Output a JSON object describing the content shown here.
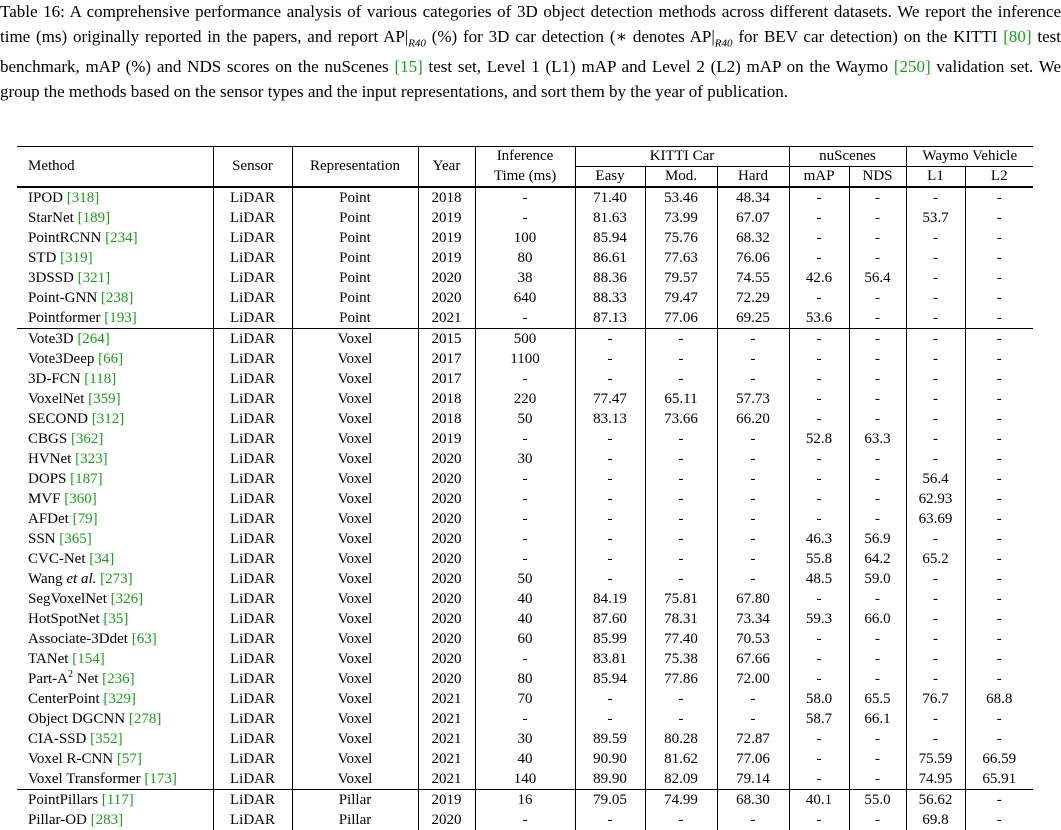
{
  "caption": {
    "label": "Table 16:",
    "p1": " A comprehensive performance analysis of various categories of 3D object detection methods across different datasets. We report the inference time (ms) originally reported in the papers, and report AP|",
    "ap_sub": "R40",
    "p2": " (%) for 3D car detection (",
    "star": "∗",
    "p3": " denotes AP|",
    "p4": " for BEV car detection) on the KITTI ",
    "cite_kitti": "[80]",
    "p5": " test benchmark, mAP (%) and NDS scores on the nuScenes ",
    "cite_nuscenes": "[15]",
    "p6": " test set, Level 1 (L1) mAP and Level 2 (L2) mAP on the Waymo ",
    "cite_waymo": "[250]",
    "p7": " validation set. We group the methods based on the sensor types and the input representations, and sort them by the year of publication."
  },
  "header": {
    "method": "Method",
    "sensor": "Sensor",
    "representation": "Representation",
    "year": "Year",
    "inference_1": "Inference",
    "inference_2": "Time (ms)",
    "kitti": "KITTI Car",
    "easy": "Easy",
    "mod": "Mod.",
    "hard": "Hard",
    "nuscenes": "nuScenes",
    "map": "mAP",
    "nds": "NDS",
    "waymo": "Waymo Vehicle",
    "l1": "L1",
    "l2": "L2"
  },
  "rows": [
    {
      "name": "IPOD",
      "cite": "[318]",
      "sensor": "LiDAR",
      "rep": "Point",
      "year": "2018",
      "time": "-",
      "easy": "71.40",
      "mod": "53.46",
      "hard": "48.34",
      "map": "-",
      "nds": "-",
      "l1": "-",
      "l2": "-"
    },
    {
      "name": "StarNet",
      "cite": "[189]",
      "sensor": "LiDAR",
      "rep": "Point",
      "year": "2019",
      "time": "-",
      "easy": "81.63",
      "mod": "73.99",
      "hard": "67.07",
      "map": "-",
      "nds": "-",
      "l1": "53.7",
      "l2": "-"
    },
    {
      "name": "PointRCNN",
      "cite": "[234]",
      "sensor": "LiDAR",
      "rep": "Point",
      "year": "2019",
      "time": "100",
      "easy": "85.94",
      "mod": "75.76",
      "hard": "68.32",
      "map": "-",
      "nds": "-",
      "l1": "-",
      "l2": "-"
    },
    {
      "name": "STD",
      "cite": "[319]",
      "sensor": "LiDAR",
      "rep": "Point",
      "year": "2019",
      "time": "80",
      "easy": "86.61",
      "mod": "77.63",
      "hard": "76.06",
      "map": "-",
      "nds": "-",
      "l1": "-",
      "l2": "-"
    },
    {
      "name": "3DSSD",
      "cite": "[321]",
      "sensor": "LiDAR",
      "rep": "Point",
      "year": "2020",
      "time": "38",
      "easy": "88.36",
      "mod": "79.57",
      "hard": "74.55",
      "map": "42.6",
      "nds": "56.4",
      "l1": "-",
      "l2": "-"
    },
    {
      "name": "Point-GNN",
      "cite": "[238]",
      "sensor": "LiDAR",
      "rep": "Point",
      "year": "2020",
      "time": "640",
      "easy": "88.33",
      "mod": "79.47",
      "hard": "72.29",
      "map": "-",
      "nds": "-",
      "l1": "-",
      "l2": "-"
    },
    {
      "name": "Pointformer",
      "cite": "[193]",
      "sensor": "LiDAR",
      "rep": "Point",
      "year": "2021",
      "time": "-",
      "easy": "87.13",
      "mod": "77.06",
      "hard": "69.25",
      "map": "53.6",
      "nds": "-",
      "l1": "-",
      "l2": "-"
    },
    {
      "name": "Vote3D",
      "cite": "[264]",
      "sensor": "LiDAR",
      "rep": "Voxel",
      "year": "2015",
      "time": "500",
      "easy": "-",
      "mod": "-",
      "hard": "-",
      "map": "-",
      "nds": "-",
      "l1": "-",
      "l2": "-"
    },
    {
      "name": "Vote3Deep",
      "cite": "[66]",
      "sensor": "LiDAR",
      "rep": "Voxel",
      "year": "2017",
      "time": "1100",
      "easy": "-",
      "mod": "-",
      "hard": "-",
      "map": "-",
      "nds": "-",
      "l1": "-",
      "l2": "-"
    },
    {
      "name": "3D-FCN",
      "cite": "[118]",
      "sensor": "LiDAR",
      "rep": "Voxel",
      "year": "2017",
      "time": "-",
      "easy": "-",
      "mod": "-",
      "hard": "-",
      "map": "-",
      "nds": "-",
      "l1": "-",
      "l2": "-"
    },
    {
      "name": "VoxelNet",
      "cite": "[359]",
      "sensor": "LiDAR",
      "rep": "Voxel",
      "year": "2018",
      "time": "220",
      "easy": "77.47",
      "mod": "65.11",
      "hard": "57.73",
      "map": "-",
      "nds": "-",
      "l1": "-",
      "l2": "-"
    },
    {
      "name": "SECOND",
      "cite": "[312]",
      "sensor": "LiDAR",
      "rep": "Voxel",
      "year": "2018",
      "time": "50",
      "easy": "83.13",
      "mod": "73.66",
      "hard": "66.20",
      "map": "-",
      "nds": "-",
      "l1": "-",
      "l2": "-"
    },
    {
      "name": "CBGS",
      "cite": "[362]",
      "sensor": "LiDAR",
      "rep": "Voxel",
      "year": "2019",
      "time": "-",
      "easy": "-",
      "mod": "-",
      "hard": "-",
      "map": "52.8",
      "nds": "63.3",
      "l1": "-",
      "l2": "-"
    },
    {
      "name": "HVNet",
      "cite": "[323]",
      "sensor": "LiDAR",
      "rep": "Voxel",
      "year": "2020",
      "time": "30",
      "easy": "-",
      "mod": "-",
      "hard": "-",
      "map": "-",
      "nds": "-",
      "l1": "-",
      "l2": "-"
    },
    {
      "name": "DOPS",
      "cite": "[187]",
      "sensor": "LiDAR",
      "rep": "Voxel",
      "year": "2020",
      "time": "-",
      "easy": "-",
      "mod": "-",
      "hard": "-",
      "map": "-",
      "nds": "-",
      "l1": "56.4",
      "l2": "-"
    },
    {
      "name": "MVF",
      "cite": "[360]",
      "sensor": "LiDAR",
      "rep": "Voxel",
      "year": "2020",
      "time": "-",
      "easy": "-",
      "mod": "-",
      "hard": "-",
      "map": "-",
      "nds": "-",
      "l1": "62.93",
      "l2": "-"
    },
    {
      "name": "AFDet",
      "cite": "[79]",
      "sensor": "LiDAR",
      "rep": "Voxel",
      "year": "2020",
      "time": "-",
      "easy": "-",
      "mod": "-",
      "hard": "-",
      "map": "-",
      "nds": "-",
      "l1": "63.69",
      "l2": "-"
    },
    {
      "name": "SSN",
      "cite": "[365]",
      "sensor": "LiDAR",
      "rep": "Voxel",
      "year": "2020",
      "time": "-",
      "easy": "-",
      "mod": "-",
      "hard": "-",
      "map": "46.3",
      "nds": "56.9",
      "l1": "-",
      "l2": "-"
    },
    {
      "name": "CVC-Net",
      "cite": "[34]",
      "sensor": "LiDAR",
      "rep": "Voxel",
      "year": "2020",
      "time": "-",
      "easy": "-",
      "mod": "-",
      "hard": "-",
      "map": "55.8",
      "nds": "64.2",
      "l1": "65.2",
      "l2": "-"
    },
    {
      "name": "Wang",
      "etal": "et al.",
      "cite": "[273]",
      "sensor": "LiDAR",
      "rep": "Voxel",
      "year": "2020",
      "time": "50",
      "easy": "-",
      "mod": "-",
      "hard": "-",
      "map": "48.5",
      "nds": "59.0",
      "l1": "-",
      "l2": "-"
    },
    {
      "name": "SegVoxelNet",
      "cite": "[326]",
      "sensor": "LiDAR",
      "rep": "Voxel",
      "year": "2020",
      "time": "40",
      "easy": "84.19",
      "mod": "75.81",
      "hard": "67.80",
      "map": "-",
      "nds": "-",
      "l1": "-",
      "l2": "-"
    },
    {
      "name": "HotSpotNet",
      "cite": "[35]",
      "sensor": "LiDAR",
      "rep": "Voxel",
      "year": "2020",
      "time": "40",
      "easy": "87.60",
      "mod": "78.31",
      "hard": "73.34",
      "map": "59.3",
      "nds": "66.0",
      "l1": "-",
      "l2": "-"
    },
    {
      "name": "Associate-3Ddet",
      "cite": "[63]",
      "sensor": "LiDAR",
      "rep": "Voxel",
      "year": "2020",
      "time": "60",
      "easy": "85.99",
      "mod": "77.40",
      "hard": "70.53",
      "map": "-",
      "nds": "-",
      "l1": "-",
      "l2": "-"
    },
    {
      "name": "TANet",
      "cite": "[154]",
      "sensor": "LiDAR",
      "rep": "Voxel",
      "year": "2020",
      "time": "-",
      "easy": "83.81",
      "mod": "75.38",
      "hard": "67.66",
      "map": "-",
      "nds": "-",
      "l1": "-",
      "l2": "-"
    },
    {
      "name": "Part-A",
      "sup": "2",
      "name2": " Net",
      "cite": "[236]",
      "sensor": "LiDAR",
      "rep": "Voxel",
      "year": "2020",
      "time": "80",
      "easy": "85.94",
      "mod": "77.86",
      "hard": "72.00",
      "map": "-",
      "nds": "-",
      "l1": "-",
      "l2": "-"
    },
    {
      "name": "CenterPoint",
      "cite": "[329]",
      "sensor": "LiDAR",
      "rep": "Voxel",
      "year": "2021",
      "time": "70",
      "easy": "-",
      "mod": "-",
      "hard": "-",
      "map": "58.0",
      "nds": "65.5",
      "l1": "76.7",
      "l2": "68.8"
    },
    {
      "name": "Object DGCNN",
      "cite": "[278]",
      "sensor": "LiDAR",
      "rep": "Voxel",
      "year": "2021",
      "time": "-",
      "easy": "-",
      "mod": "-",
      "hard": "-",
      "map": "58.7",
      "nds": "66.1",
      "l1": "-",
      "l2": "-"
    },
    {
      "name": "CIA-SSD",
      "cite": "[352]",
      "sensor": "LiDAR",
      "rep": "Voxel",
      "year": "2021",
      "time": "30",
      "easy": "89.59",
      "mod": "80.28",
      "hard": "72.87",
      "map": "-",
      "nds": "-",
      "l1": "-",
      "l2": "-"
    },
    {
      "name": "Voxel R-CNN",
      "cite": "[57]",
      "sensor": "LiDAR",
      "rep": "Voxel",
      "year": "2021",
      "time": "40",
      "easy": "90.90",
      "mod": "81.62",
      "hard": "77.06",
      "map": "-",
      "nds": "-",
      "l1": "75.59",
      "l2": "66.59"
    },
    {
      "name": "Voxel Transformer",
      "cite": "[173]",
      "sensor": "LiDAR",
      "rep": "Voxel",
      "year": "2021",
      "time": "140",
      "easy": "89.90",
      "mod": "82.09",
      "hard": "79.14",
      "map": "-",
      "nds": "-",
      "l1": "74.95",
      "l2": "65.91"
    },
    {
      "name": "PointPillars",
      "cite": "[117]",
      "sensor": "LiDAR",
      "rep": "Pillar",
      "year": "2019",
      "time": "16",
      "easy": "79.05",
      "mod": "74.99",
      "hard": "68.30",
      "map": "40.1",
      "nds": "55.0",
      "l1": "56.62",
      "l2": "-"
    },
    {
      "name": "Pillar-OD",
      "cite": "[283]",
      "sensor": "LiDAR",
      "rep": "Pillar",
      "year": "2020",
      "time": "-",
      "easy": "-",
      "mod": "-",
      "hard": "-",
      "map": "-",
      "nds": "-",
      "l1": "69.8",
      "l2": "-"
    }
  ],
  "colors": {
    "citation": "#1a9e1a",
    "text": "#000000"
  }
}
